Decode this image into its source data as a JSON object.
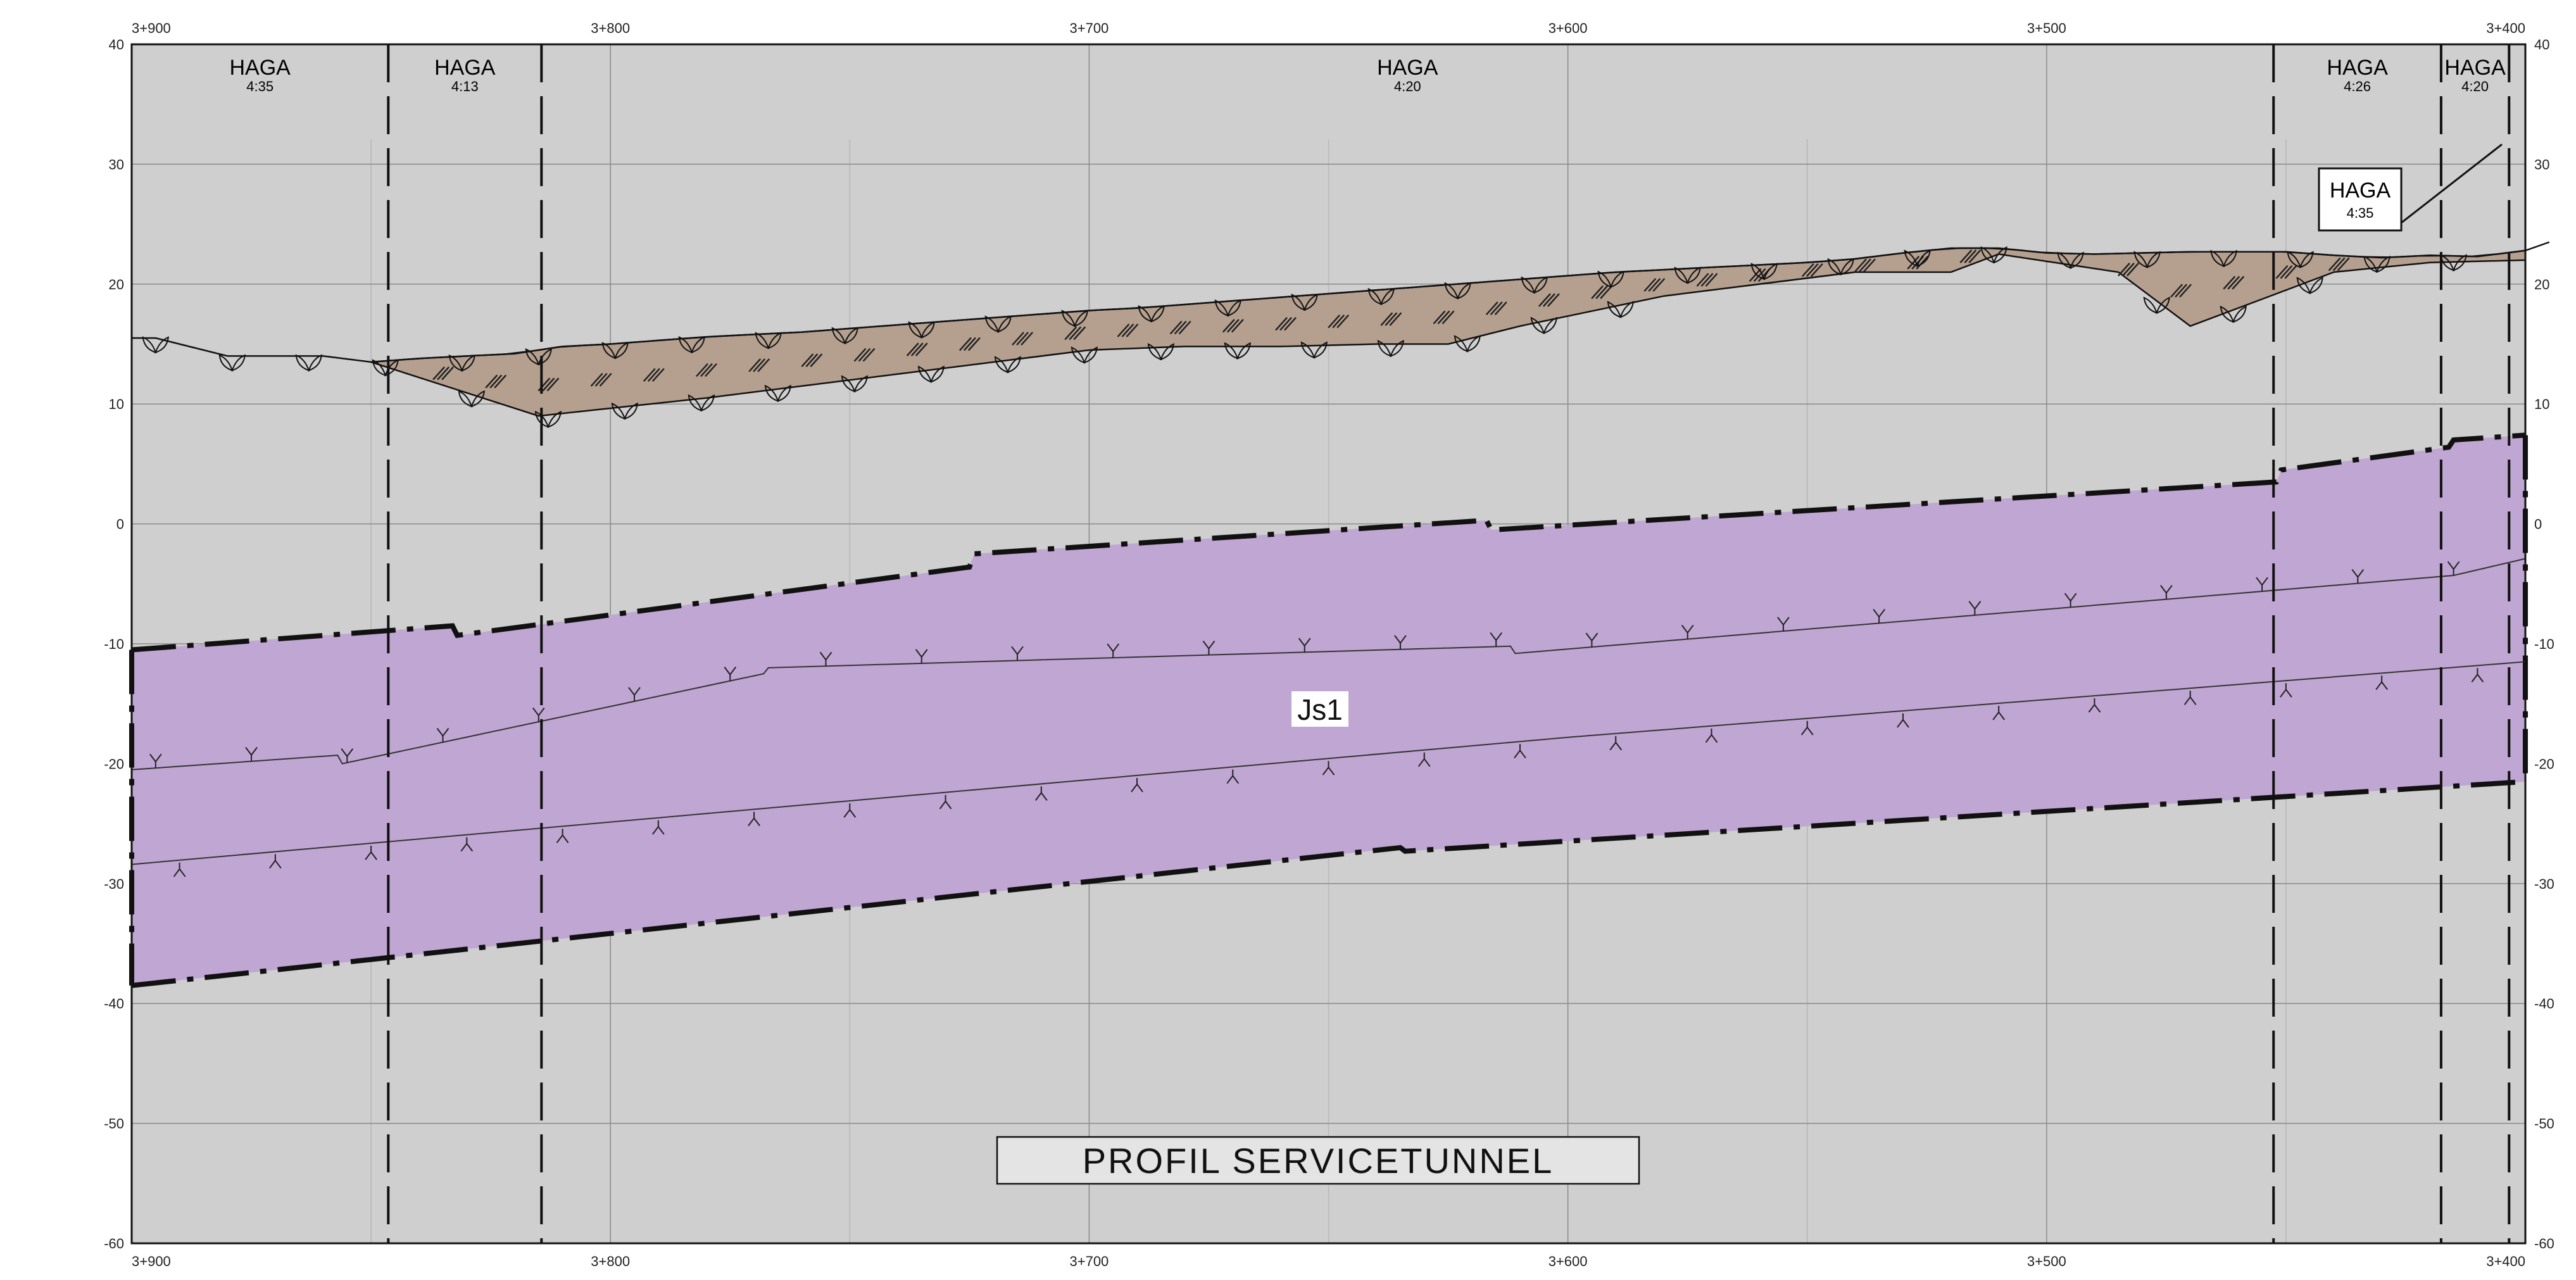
{
  "drawing": {
    "title": "PROFIL SERVICETUNNEL",
    "rock_unit_label": "Js1",
    "colors": {
      "background_rock": "#cfcfcf",
      "soil_fill": "#b5a08f",
      "tunnel_fill": "#c0a6d2",
      "line": "#111111",
      "grid": "#8a8a8a"
    }
  },
  "axes": {
    "x_ticks": [
      "3+900",
      "3+800",
      "3+700",
      "3+600",
      "3+500",
      "3+400"
    ],
    "y_ticks": [
      "40",
      "30",
      "20",
      "10",
      "0",
      "-10",
      "-20",
      "-30",
      "-40",
      "-50",
      "-60"
    ]
  },
  "zones": [
    {
      "name": "HAGA",
      "slope": "4:35"
    },
    {
      "name": "HAGA",
      "slope": "4:13"
    },
    {
      "name": "HAGA",
      "slope": "4:20"
    },
    {
      "name": "HAGA",
      "slope": "4:26"
    },
    {
      "name": "HAGA",
      "slope": "4:20"
    }
  ],
  "callout": {
    "name": "HAGA",
    "slope": "4:35"
  },
  "chart_data": {
    "type": "area",
    "x_unit": "chainage",
    "xlim": [
      3900,
      3400
    ],
    "ylim": [
      -60,
      40
    ],
    "terrain_surface": {
      "x": [
        3900,
        3895,
        3890,
        3880,
        3870,
        3860,
        3850,
        3840,
        3830,
        3820,
        3810,
        3800,
        3790,
        3780,
        3770,
        3760,
        3750,
        3740,
        3730,
        3720,
        3710,
        3700,
        3690,
        3680,
        3670,
        3660,
        3650,
        3640,
        3630,
        3620,
        3610,
        3600,
        3590,
        3580,
        3570,
        3560,
        3550,
        3540,
        3530,
        3520,
        3510,
        3500,
        3490,
        3480,
        3470,
        3460,
        3450,
        3440,
        3430,
        3420,
        3410,
        3400,
        3395
      ],
      "y": [
        15.5,
        15.5,
        15,
        14,
        14,
        14,
        13.5,
        13.8,
        14,
        14.2,
        14.8,
        15,
        15.3,
        15.6,
        15.8,
        16,
        16.3,
        16.6,
        16.9,
        17.2,
        17.5,
        17.8,
        18,
        18.3,
        18.6,
        18.9,
        19.2,
        19.5,
        19.8,
        20.1,
        20.4,
        20.7,
        21,
        21.2,
        21.4,
        21.6,
        21.8,
        22.1,
        22.6,
        23,
        23,
        22.6,
        22.5,
        22.6,
        22.7,
        22.7,
        22.7,
        22.4,
        22.2,
        22.4,
        22.3,
        22.8,
        23.5
      ]
    },
    "soil_base": {
      "x": [
        3850,
        3815,
        3780,
        3740,
        3700,
        3680,
        3660,
        3640,
        3625,
        3610,
        3580,
        3540,
        3520,
        3510,
        3485,
        3470,
        3440,
        3420,
        3400
      ],
      "y": [
        13.5,
        9,
        10.5,
        12.5,
        14.5,
        14.8,
        14.8,
        15,
        15,
        16.5,
        19,
        21,
        21,
        22.5,
        21,
        16.5,
        21,
        21.8,
        22
      ],
      "label": ""
    },
    "tunnel_zone_top": {
      "x": [
        3900,
        3833,
        3832,
        3725,
        3724,
        3617,
        3616,
        3452,
        3451,
        3416,
        3415,
        3400
      ],
      "y": [
        -10.5,
        -8.5,
        -9.3,
        -3.6,
        -2.5,
        0.3,
        -0.5,
        3.5,
        4.5,
        6.4,
        7,
        7.4
      ]
    },
    "tunnel_zone_bottom": {
      "x": [
        3900,
        3635,
        3634,
        3400
      ],
      "y": [
        -38.5,
        -27,
        -27.3,
        -21.5
      ]
    },
    "upper_contour": {
      "x": [
        3900,
        3857,
        3856,
        3768,
        3767,
        3612,
        3611,
        3415,
        3400
      ],
      "y": [
        -20.5,
        -19.3,
        -20,
        -12.5,
        -12,
        -10.2,
        -10.8,
        -4.3,
        -2.9
      ]
    },
    "lower_contour": {
      "x": [
        3900,
        3600,
        3400
      ],
      "y": [
        -28.4,
        -17.8,
        -11.5
      ]
    },
    "zone_boundaries": [
      3846.4,
      3814.4,
      3452.6,
      3417.6,
      3403.4
    ]
  }
}
